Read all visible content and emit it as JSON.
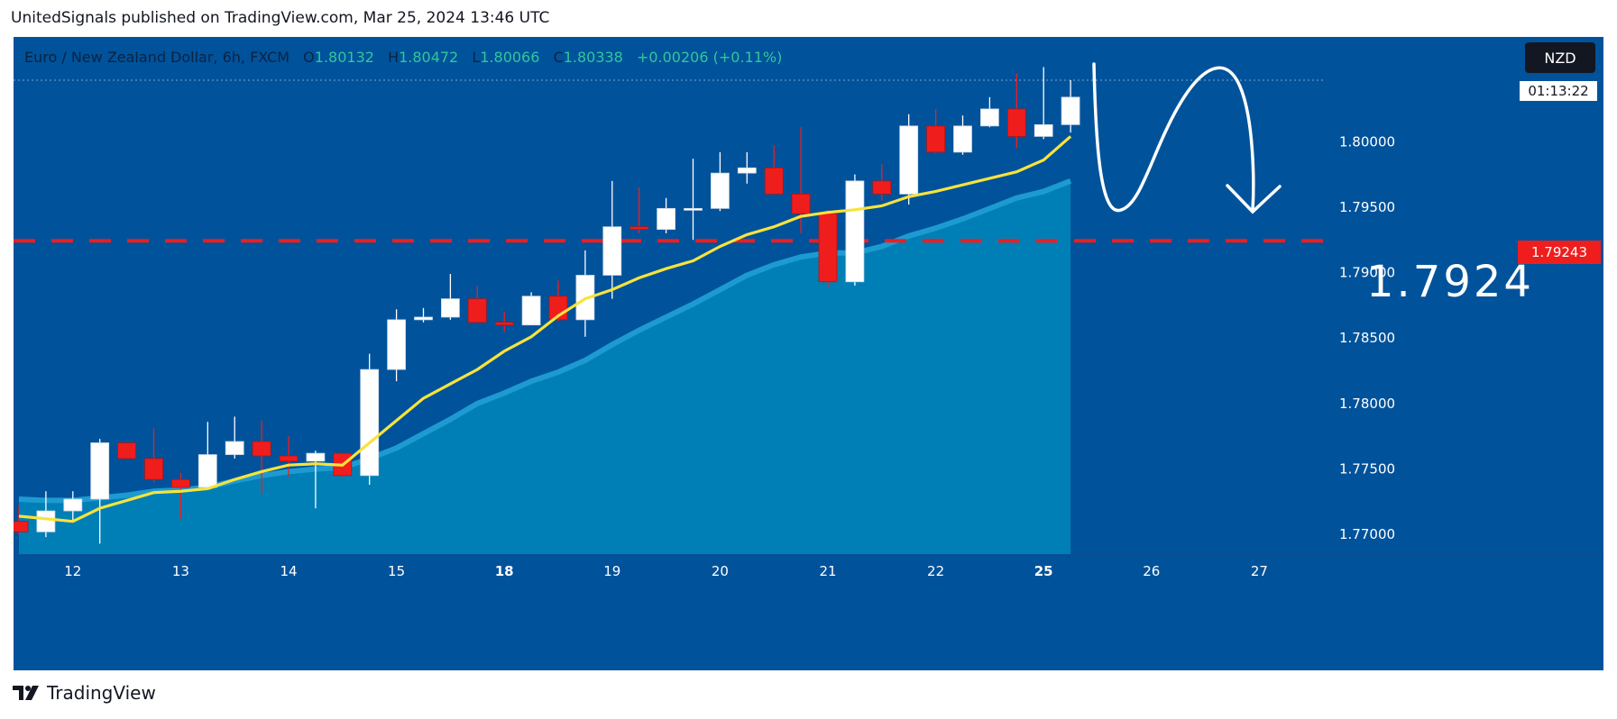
{
  "publication": {
    "text": "UnitedSignals published on TradingView.com, Mar 25, 2024 13:46 UTC"
  },
  "legend": {
    "symbol": "Euro / New Zealand Dollar, 6h, FXCM",
    "open_key": "O",
    "open": "1.80132",
    "high_key": "H",
    "high": "1.80472",
    "low_key": "L",
    "low": "1.80066",
    "close_key": "C",
    "close": "1.80338",
    "change": "+0.00206 (+0.11%)"
  },
  "badges": {
    "currency": "NZD",
    "timer": "01:13:22",
    "price": "1.79243"
  },
  "annotation": {
    "target": "1.7924"
  },
  "footer": {
    "brand": "TradingView"
  },
  "colors": {
    "background": "#00529b",
    "up": "#ffffff",
    "down": "#f01d1d",
    "ema": "#f7e33c",
    "area": "#0082b7",
    "level": "#f01d1d"
  },
  "chart_data": {
    "type": "candlestick",
    "timeframe": "6h",
    "ylim": [
      1.7685,
      1.808
    ],
    "y_ticks": [
      "1.77000",
      "1.77500",
      "1.78000",
      "1.78500",
      "1.79000",
      "1.79500",
      "1.80000"
    ],
    "x_ticks": [
      {
        "label": "12",
        "index": 2,
        "bold": false
      },
      {
        "label": "13",
        "index": 6,
        "bold": false
      },
      {
        "label": "14",
        "index": 10,
        "bold": false
      },
      {
        "label": "15",
        "index": 14,
        "bold": false
      },
      {
        "label": "18",
        "index": 18,
        "bold": true
      },
      {
        "label": "19",
        "index": 22,
        "bold": false
      },
      {
        "label": "20",
        "index": 26,
        "bold": false
      },
      {
        "label": "21",
        "index": 30,
        "bold": false
      },
      {
        "label": "22",
        "index": 34,
        "bold": false
      },
      {
        "label": "25",
        "index": 38,
        "bold": true
      },
      {
        "label": "26",
        "index": 42,
        "bold": false
      },
      {
        "label": "27",
        "index": 46,
        "bold": false
      }
    ],
    "horizontal_level": 1.79243,
    "candles": [
      {
        "o": 1.771,
        "h": 1.7722,
        "l": 1.77,
        "c": 1.7702
      },
      {
        "o": 1.7702,
        "h": 1.7733,
        "l": 1.7698,
        "c": 1.7718
      },
      {
        "o": 1.7718,
        "h": 1.7733,
        "l": 1.7711,
        "c": 1.7727
      },
      {
        "o": 1.7727,
        "h": 1.7773,
        "l": 1.7693,
        "c": 1.777
      },
      {
        "o": 1.777,
        "h": 1.777,
        "l": 1.7758,
        "c": 1.7758
      },
      {
        "o": 1.7758,
        "h": 1.7781,
        "l": 1.774,
        "c": 1.7742
      },
      {
        "o": 1.7742,
        "h": 1.7747,
        "l": 1.7712,
        "c": 1.7736
      },
      {
        "o": 1.7736,
        "h": 1.7786,
        "l": 1.7736,
        "c": 1.7761
      },
      {
        "o": 1.7761,
        "h": 1.779,
        "l": 1.7758,
        "c": 1.7771
      },
      {
        "o": 1.7771,
        "h": 1.7787,
        "l": 1.7731,
        "c": 1.776
      },
      {
        "o": 1.776,
        "h": 1.7775,
        "l": 1.7744,
        "c": 1.7756
      },
      {
        "o": 1.7756,
        "h": 1.7764,
        "l": 1.772,
        "c": 1.7762
      },
      {
        "o": 1.7762,
        "h": 1.7762,
        "l": 1.7744,
        "c": 1.7745
      },
      {
        "o": 1.7745,
        "h": 1.7838,
        "l": 1.7738,
        "c": 1.7826
      },
      {
        "o": 1.7826,
        "h": 1.7872,
        "l": 1.7817,
        "c": 1.7864
      },
      {
        "o": 1.7864,
        "h": 1.7873,
        "l": 1.7862,
        "c": 1.7866
      },
      {
        "o": 1.7866,
        "h": 1.7899,
        "l": 1.7864,
        "c": 1.788
      },
      {
        "o": 1.788,
        "h": 1.789,
        "l": 1.7863,
        "c": 1.7862
      },
      {
        "o": 1.7862,
        "h": 1.787,
        "l": 1.7855,
        "c": 1.786
      },
      {
        "o": 1.786,
        "h": 1.7885,
        "l": 1.786,
        "c": 1.7882
      },
      {
        "o": 1.7882,
        "h": 1.7894,
        "l": 1.7863,
        "c": 1.7864
      },
      {
        "o": 1.7864,
        "h": 1.7917,
        "l": 1.7851,
        "c": 1.7898
      },
      {
        "o": 1.7898,
        "h": 1.797,
        "l": 1.788,
        "c": 1.7935
      },
      {
        "o": 1.7935,
        "h": 1.7965,
        "l": 1.793,
        "c": 1.7933
      },
      {
        "o": 1.7933,
        "h": 1.7957,
        "l": 1.793,
        "c": 1.7949
      },
      {
        "o": 1.7949,
        "h": 1.7987,
        "l": 1.7925,
        "c": 1.7949
      },
      {
        "o": 1.7949,
        "h": 1.7992,
        "l": 1.7947,
        "c": 1.7976
      },
      {
        "o": 1.7976,
        "h": 1.7992,
        "l": 1.7968,
        "c": 1.798
      },
      {
        "o": 1.798,
        "h": 1.7997,
        "l": 1.796,
        "c": 1.796
      },
      {
        "o": 1.796,
        "h": 1.8011,
        "l": 1.793,
        "c": 1.7945
      },
      {
        "o": 1.7945,
        "h": 1.7948,
        "l": 1.7889,
        "c": 1.7893
      },
      {
        "o": 1.7893,
        "h": 1.7975,
        "l": 1.789,
        "c": 1.797
      },
      {
        "o": 1.797,
        "h": 1.7983,
        "l": 1.7955,
        "c": 1.796
      },
      {
        "o": 1.796,
        "h": 1.8021,
        "l": 1.7952,
        "c": 1.8012
      },
      {
        "o": 1.8012,
        "h": 1.8025,
        "l": 1.7991,
        "c": 1.7992
      },
      {
        "o": 1.7992,
        "h": 1.802,
        "l": 1.799,
        "c": 1.8012
      },
      {
        "o": 1.8012,
        "h": 1.8034,
        "l": 1.8011,
        "c": 1.8025
      },
      {
        "o": 1.8025,
        "h": 1.8052,
        "l": 1.7995,
        "c": 1.8004
      },
      {
        "o": 1.8004,
        "h": 1.8057,
        "l": 1.8002,
        "c": 1.8013
      },
      {
        "o": 1.8013,
        "h": 1.8047,
        "l": 1.8007,
        "c": 1.8034
      }
    ],
    "ema_fast": [
      1.7714,
      1.7712,
      1.771,
      1.772,
      1.7726,
      1.7732,
      1.7733,
      1.7735,
      1.7742,
      1.7748,
      1.7753,
      1.7754,
      1.7753,
      1.777,
      1.7787,
      1.7804,
      1.7815,
      1.7826,
      1.784,
      1.7851,
      1.7867,
      1.788,
      1.7887,
      1.7896,
      1.7903,
      1.7909,
      1.792,
      1.7929,
      1.7935,
      1.7943,
      1.7946,
      1.7948,
      1.7951,
      1.7958,
      1.7962,
      1.7967,
      1.7972,
      1.7977,
      1.7986,
      1.8004
    ],
    "ema_slow": [
      1.7727,
      1.7726,
      1.7726,
      1.7728,
      1.773,
      1.7733,
      1.7734,
      1.7736,
      1.7741,
      1.7745,
      1.7748,
      1.775,
      1.7751,
      1.7758,
      1.7766,
      1.7777,
      1.7788,
      1.78,
      1.7808,
      1.7817,
      1.7824,
      1.7833,
      1.7845,
      1.7856,
      1.7866,
      1.7876,
      1.7887,
      1.7898,
      1.7906,
      1.7912,
      1.7915,
      1.7915,
      1.792,
      1.7928,
      1.7934,
      1.7941,
      1.7949,
      1.7957,
      1.7962,
      1.797
    ]
  }
}
